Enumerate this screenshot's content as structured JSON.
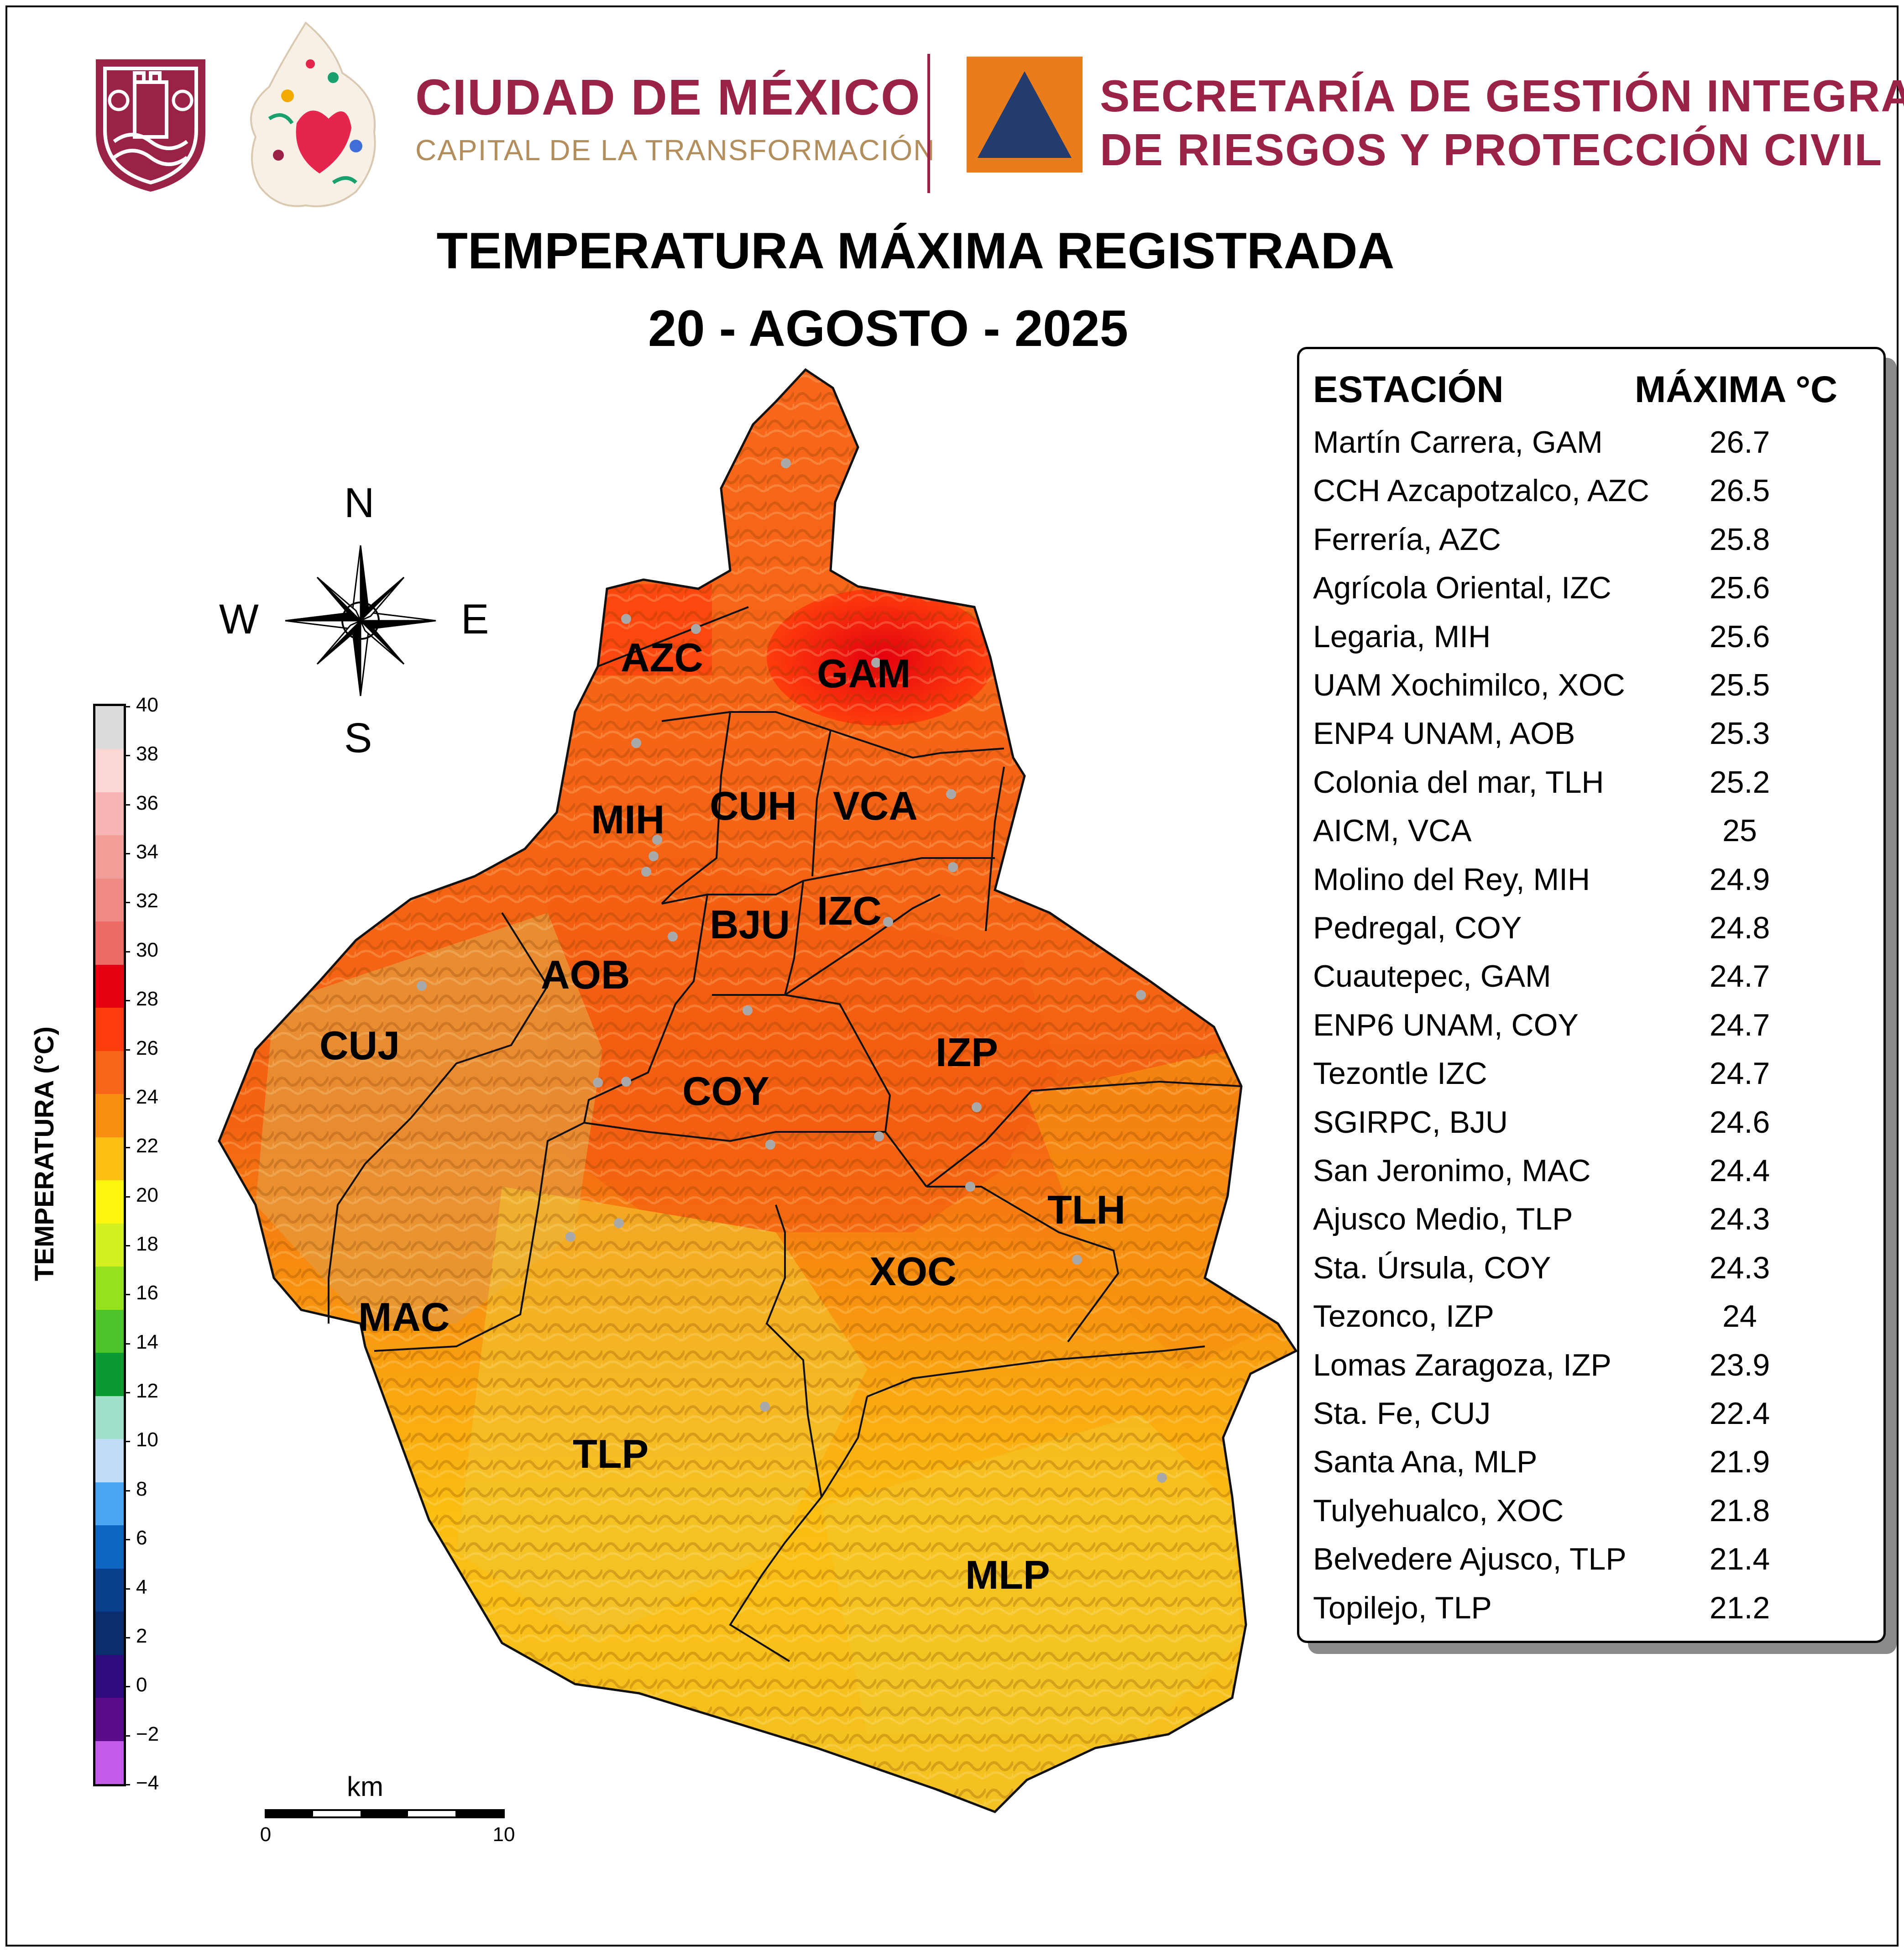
{
  "header": {
    "org_title": "CIUDAD DE MÉXICO",
    "org_subtitle": "CAPITAL DE LA TRANSFORMACIÓN",
    "agency_line1": "SECRETARÍA DE GESTIÓN INTEGRAL",
    "agency_line2": "DE RIESGOS Y PROTECCIÓN CIVIL",
    "colors": {
      "brand": "#9b2247",
      "gold": "#b38e5d",
      "agency_orange": "#ea7d1a",
      "agency_navy": "#243b6e"
    }
  },
  "title": {
    "line1": "TEMPERATURA MÁXIMA REGISTRADA",
    "line2": "20 - AGOSTO - 2025"
  },
  "compass": {
    "n": "N",
    "s": "S",
    "e": "E",
    "w": "W"
  },
  "colorbar": {
    "label": "TEMPERATURA (°C)",
    "ticks": [
      "40",
      "38",
      "36",
      "34",
      "32",
      "30",
      "28",
      "26",
      "24",
      "22",
      "20",
      "18",
      "16",
      "14",
      "12",
      "10",
      "8",
      "6",
      "4",
      "2",
      "0",
      "−2",
      "−4"
    ],
    "colors": [
      "#dcdcdc",
      "#fbd6d4",
      "#f7b6b3",
      "#f39e98",
      "#f08b83",
      "#ee6b66",
      "#e4000e",
      "#fe3d0c",
      "#f7661a",
      "#f78e0f",
      "#fbbe12",
      "#fef50f",
      "#d3ee21",
      "#97e21f",
      "#4bc52a",
      "#0a9932",
      "#9fe0c8",
      "#c1dcf5",
      "#4aa6f2",
      "#0d66c0",
      "#0a3f8e",
      "#0c2c70",
      "#2e0c7e",
      "#5b0c8a",
      "#c35ce8"
    ]
  },
  "scale_bar": {
    "unit": "km",
    "start": "0",
    "end": "10"
  },
  "districts": [
    {
      "label": "AZC"
    },
    {
      "label": "GAM"
    },
    {
      "label": "MIH"
    },
    {
      "label": "CUH"
    },
    {
      "label": "VCA"
    },
    {
      "label": "BJU"
    },
    {
      "label": "IZC"
    },
    {
      "label": "AOB"
    },
    {
      "label": "CUJ"
    },
    {
      "label": "COY"
    },
    {
      "label": "IZP"
    },
    {
      "label": "TLH"
    },
    {
      "label": "XOC"
    },
    {
      "label": "MAC"
    },
    {
      "label": "TLP"
    },
    {
      "label": "MLP"
    }
  ],
  "stations": {
    "header_station": "ESTACIÓN",
    "header_max": "MÁXIMA °C",
    "rows": [
      {
        "name": "Martín Carrera, GAM",
        "max": "26.7"
      },
      {
        "name": "CCH Azcapotzalco, AZC",
        "max": "26.5"
      },
      {
        "name": "Ferrería, AZC",
        "max": "25.8"
      },
      {
        "name": "Agrícola Oriental, IZC",
        "max": "25.6"
      },
      {
        "name": "Legaria, MIH",
        "max": "25.6"
      },
      {
        "name": "UAM Xochimilco, XOC",
        "max": "25.5"
      },
      {
        "name": "ENP4 UNAM,  AOB",
        "max": "25.3"
      },
      {
        "name": "Colonia del mar, TLH",
        "max": "25.2"
      },
      {
        "name": "AICM, VCA",
        "max": "25"
      },
      {
        "name": "Molino del Rey, MIH",
        "max": "24.9"
      },
      {
        "name": "Pedregal, COY",
        "max": "24.8"
      },
      {
        "name": "Cuautepec, GAM",
        "max": "24.7"
      },
      {
        "name": "ENP6 UNAM,  COY",
        "max": "24.7"
      },
      {
        "name": "Tezontle IZC",
        "max": "24.7"
      },
      {
        "name": "SGIRPC, BJU",
        "max": "24.6"
      },
      {
        "name": "San Jeronimo, MAC",
        "max": "24.4"
      },
      {
        "name": "Ajusco Medio, TLP",
        "max": "24.3"
      },
      {
        "name": "Sta. Úrsula, COY",
        "max": "24.3"
      },
      {
        "name": "Tezonco, IZP",
        "max": "24"
      },
      {
        "name": "Lomas Zaragoza, IZP",
        "max": "23.9"
      },
      {
        "name": "Sta. Fe, CUJ",
        "max": "22.4"
      },
      {
        "name": "Santa Ana, MLP",
        "max": "21.9"
      },
      {
        "name": "Tulyehualco, XOC",
        "max": "21.8"
      },
      {
        "name": "Belvedere Ajusco, TLP",
        "max": "21.4"
      },
      {
        "name": "Topilejo, TLP",
        "max": "21.2"
      }
    ]
  }
}
